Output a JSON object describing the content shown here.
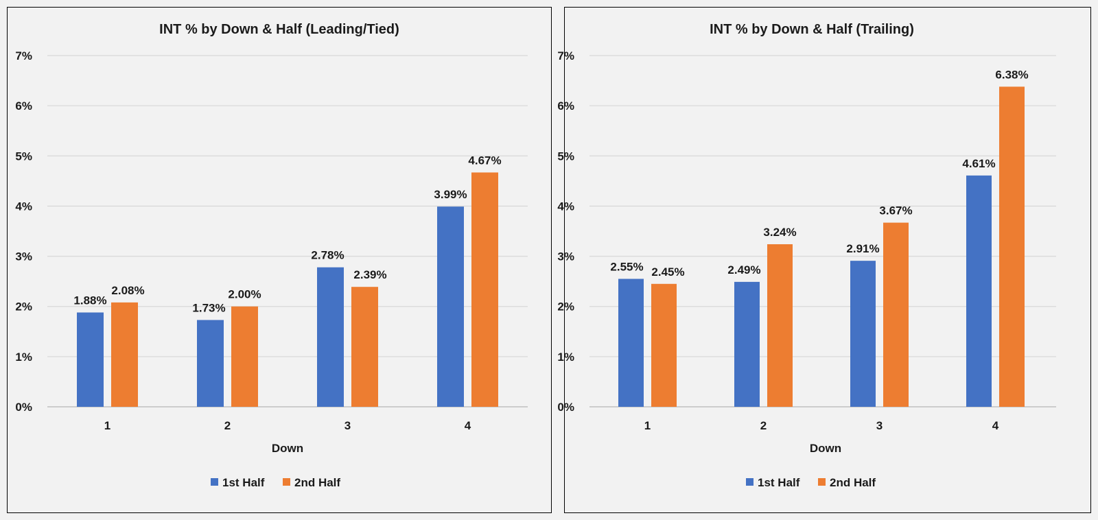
{
  "chart_data": [
    {
      "type": "bar",
      "title": "INT % by Down & Half (Leading/Tied)",
      "xlabel": "Down",
      "ylabel": "",
      "categories": [
        "1",
        "2",
        "3",
        "4"
      ],
      "ylim": [
        0,
        7
      ],
      "yticks": [
        "0%",
        "1%",
        "2%",
        "3%",
        "4%",
        "5%",
        "6%",
        "7%"
      ],
      "series": [
        {
          "name": "1st Half",
          "color": "#4472c4",
          "values": [
            1.88,
            1.73,
            2.78,
            3.99
          ],
          "labels": [
            "1.88%",
            "1.73%",
            "2.78%",
            "3.99%"
          ]
        },
        {
          "name": "2nd Half",
          "color": "#ed7d31",
          "values": [
            2.08,
            2.0,
            2.39,
            4.67
          ],
          "labels": [
            "2.08%",
            "2.00%",
            "2.39%",
            "4.67%"
          ]
        }
      ],
      "grid": true,
      "legend": "bottom"
    },
    {
      "type": "bar",
      "title": "INT % by Down & Half (Trailing)",
      "xlabel": "Down",
      "ylabel": "",
      "categories": [
        "1",
        "2",
        "3",
        "4"
      ],
      "ylim": [
        0,
        7
      ],
      "yticks": [
        "0%",
        "1%",
        "2%",
        "3%",
        "4%",
        "5%",
        "6%",
        "7%"
      ],
      "series": [
        {
          "name": "1st Half",
          "color": "#4472c4",
          "values": [
            2.55,
            2.49,
            2.91,
            4.61
          ],
          "labels": [
            "2.55%",
            "2.49%",
            "2.91%",
            "4.61%"
          ]
        },
        {
          "name": "2nd Half",
          "color": "#ed7d31",
          "values": [
            2.45,
            3.24,
            3.67,
            6.38
          ],
          "labels": [
            "2.45%",
            "3.24%",
            "3.67%",
            "6.38%"
          ]
        }
      ],
      "grid": true,
      "legend": "bottom"
    }
  ]
}
